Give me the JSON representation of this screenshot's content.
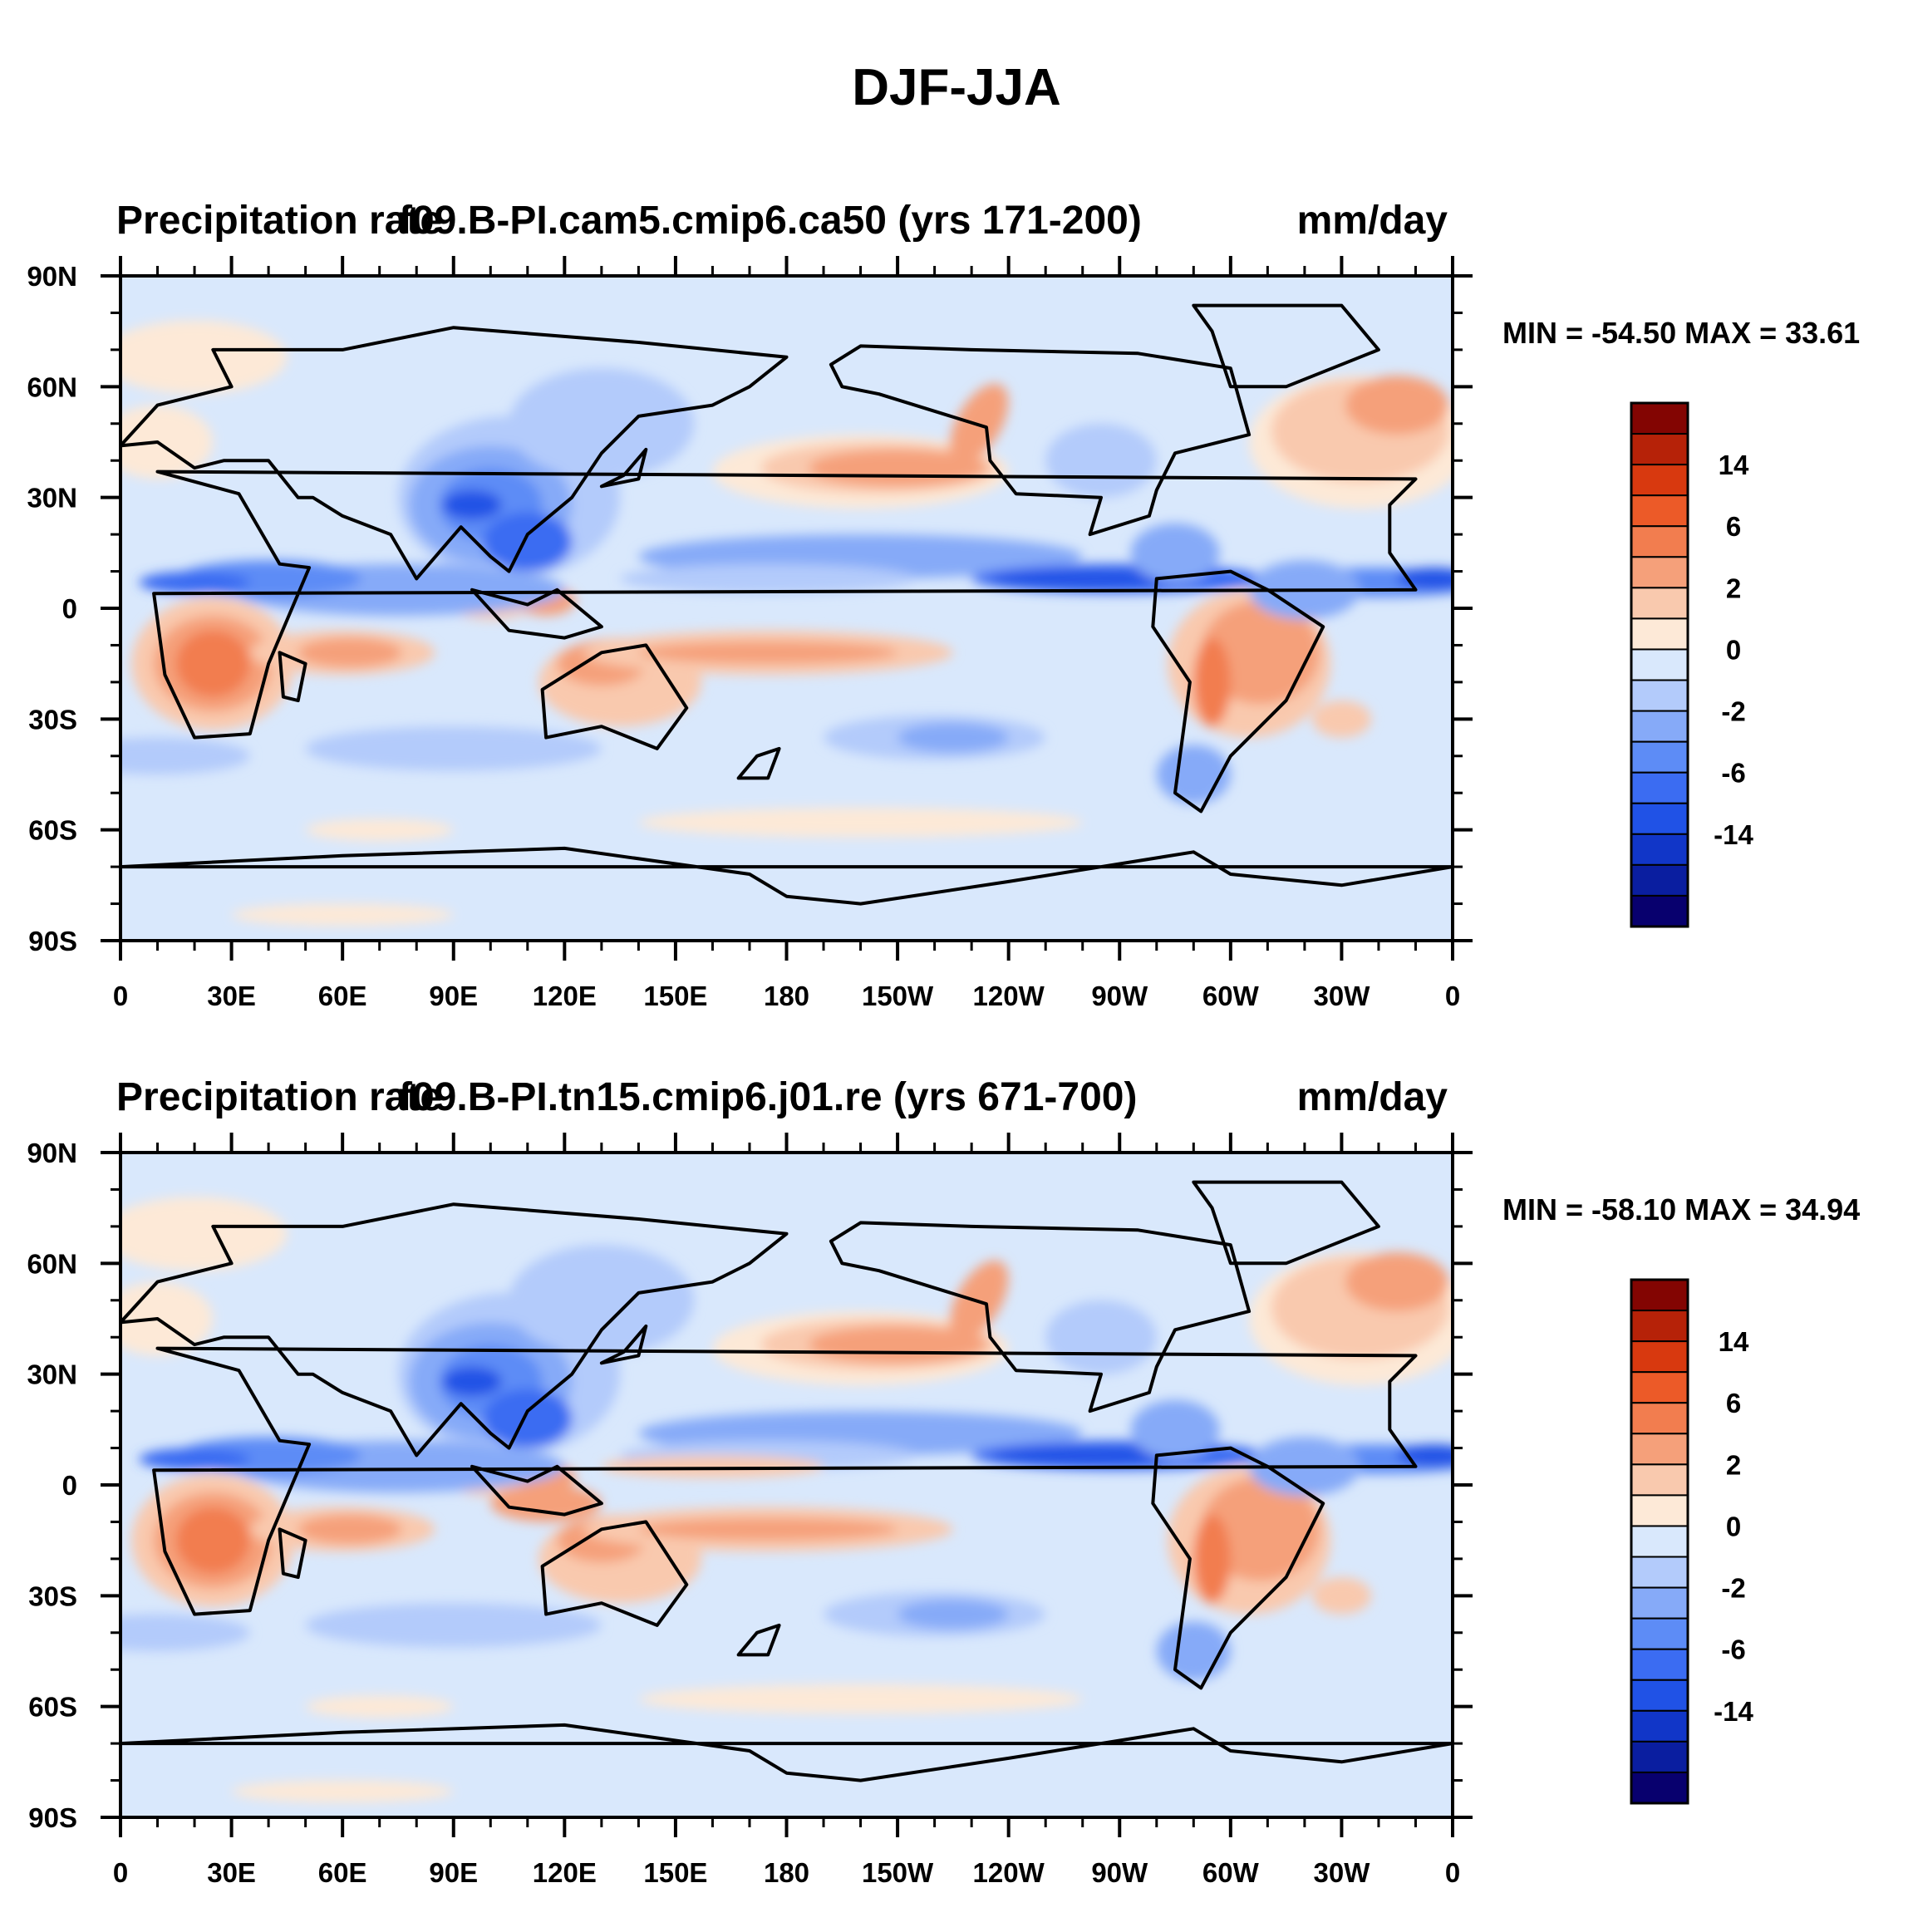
{
  "figure_title": "DJF-JJA",
  "colors": {
    "levels": [
      "#08006e",
      "#0a1ea0",
      "#1136c8",
      "#2052e6",
      "#3b6cf2",
      "#5d8cf6",
      "#86aaf8",
      "#b3cbfb",
      "#d9e8fc",
      "#fde9d7",
      "#f9c9ae",
      "#f5a07a",
      "#f27d4f",
      "#ec5a28",
      "#d8390f",
      "#b62208",
      "#830502"
    ],
    "coast": "#000000"
  },
  "x_ticks": [
    "0",
    "30E",
    "60E",
    "90E",
    "120E",
    "150E",
    "180",
    "150W",
    "120W",
    "90W",
    "60W",
    "30W",
    "0"
  ],
  "y_ticks": [
    "90N",
    "60N",
    "30N",
    "0",
    "30S",
    "60S",
    "90S"
  ],
  "colorbar_labels": [
    "14",
    "6",
    "2",
    "0",
    "-2",
    "-6",
    "-14"
  ],
  "panels": [
    {
      "left_title": "Precipitation rate",
      "center_title": "f09.B-PI.cam5.cmip6.ca50 (yrs 171-200)",
      "right_title": "mm/day",
      "min_max": "MIN = -54.50 MAX =  33.61"
    },
    {
      "left_title": "Precipitation rate",
      "center_title": "f09.B-PI.tn15.cmip6.j01.re (yrs 671-700)",
      "right_title": "mm/day",
      "min_max": "MIN = -58.10 MAX =  34.94"
    }
  ]
}
